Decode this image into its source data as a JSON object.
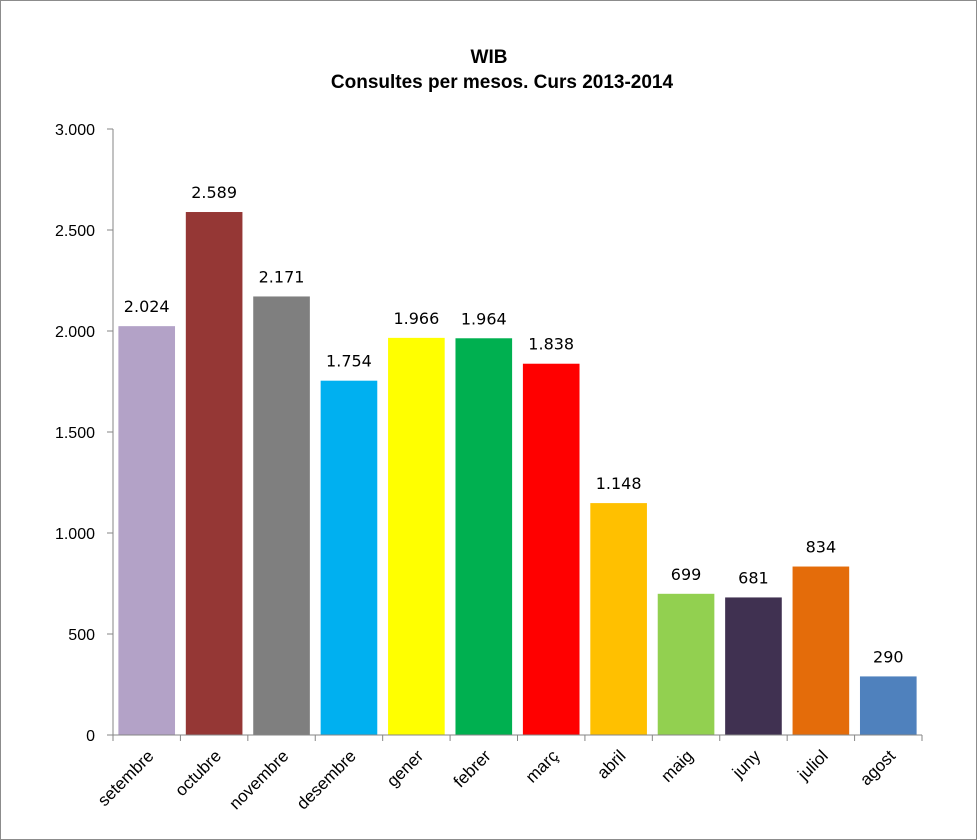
{
  "chart_data": {
    "type": "bar",
    "title": "WIB",
    "subtitle": "Consultes per mesos. Curs 2013-2014",
    "xlabel": "",
    "ylabel": "",
    "categories": [
      "setembre",
      "octubre",
      "novembre",
      "desembre",
      "gener",
      "febrer",
      "març",
      "abril",
      "maig",
      "juny",
      "juliol",
      "agost"
    ],
    "values": [
      2024,
      2589,
      2171,
      1754,
      1966,
      1964,
      1838,
      1148,
      699,
      681,
      834,
      290
    ],
    "value_labels": [
      "2.024",
      "2.589",
      "2.171",
      "1.754",
      "1.966",
      "1.964",
      "1.838",
      "1.148",
      "699",
      "681",
      "834",
      "290"
    ],
    "colors": [
      "#b3a2c7",
      "#953735",
      "#7f7f7f",
      "#00b0f0",
      "#ffff00",
      "#00b050",
      "#ff0000",
      "#ffc000",
      "#92d050",
      "#403151",
      "#e46c0a",
      "#4f81bd"
    ],
    "ylim": [
      0,
      3000
    ],
    "yticks": [
      0,
      500,
      1000,
      1500,
      2000,
      2500,
      3000
    ],
    "ytick_labels": [
      "0",
      "500",
      "1.000",
      "1.500",
      "2.000",
      "2.500",
      "3.000"
    ],
    "grid": false,
    "legend": "none"
  }
}
